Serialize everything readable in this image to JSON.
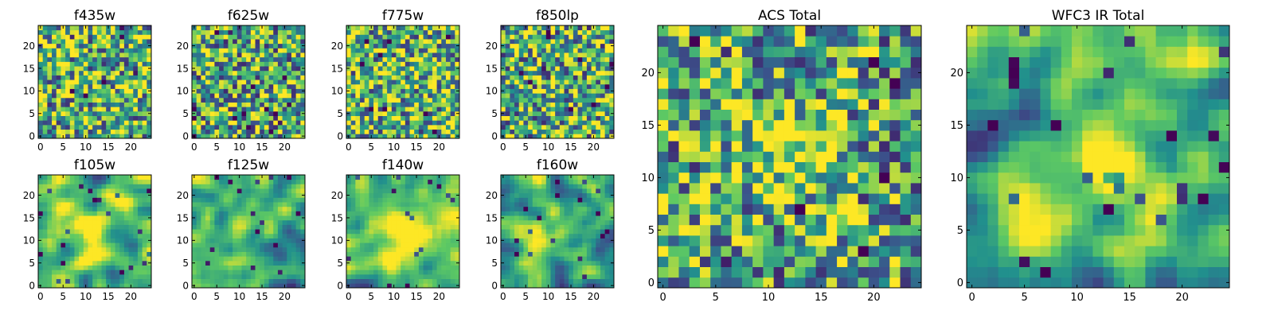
{
  "colormap": {
    "name": "viridis",
    "stops": [
      "#440154",
      "#3b528b",
      "#21908d",
      "#5dc963",
      "#fde725"
    ]
  },
  "chart_data": [
    {
      "type": "heatmap",
      "title": "f435w",
      "xticks": [
        0,
        5,
        10,
        15,
        20
      ],
      "yticks": [
        0,
        5,
        10,
        15,
        20
      ],
      "xlim": [
        -0.5,
        24.5
      ],
      "ylim": [
        -0.5,
        24.5
      ],
      "grid": false,
      "seed": 11,
      "pattern": "noise",
      "mean": 0.65
    },
    {
      "type": "heatmap",
      "title": "f625w",
      "xticks": [
        0,
        5,
        10,
        15,
        20
      ],
      "yticks": [
        0,
        5,
        10,
        15,
        20
      ],
      "xlim": [
        -0.5,
        24.5
      ],
      "ylim": [
        -0.5,
        24.5
      ],
      "grid": false,
      "seed": 23,
      "pattern": "noise",
      "mean": 0.62
    },
    {
      "type": "heatmap",
      "title": "f775w",
      "xticks": [
        0,
        5,
        10,
        15,
        20
      ],
      "yticks": [
        0,
        5,
        10,
        15,
        20
      ],
      "xlim": [
        -0.5,
        24.5
      ],
      "ylim": [
        -0.5,
        24.5
      ],
      "grid": false,
      "seed": 37,
      "pattern": "noise",
      "mean": 0.66
    },
    {
      "type": "heatmap",
      "title": "f850lp",
      "xticks": [
        0,
        5,
        10,
        15,
        20
      ],
      "yticks": [
        0,
        5,
        10,
        15,
        20
      ],
      "xlim": [
        -0.5,
        24.5
      ],
      "ylim": [
        -0.5,
        24.5
      ],
      "grid": false,
      "seed": 41,
      "pattern": "noise",
      "mean": 0.63
    },
    {
      "type": "heatmap",
      "title": "ACS Total",
      "xticks": [
        0,
        5,
        10,
        15,
        20
      ],
      "yticks": [
        0,
        5,
        10,
        15,
        20
      ],
      "xlim": [
        -0.5,
        24.5
      ],
      "ylim": [
        -0.5,
        24.5
      ],
      "grid": false,
      "seed": 53,
      "pattern": "noise-bright-center",
      "mean": 0.62
    },
    {
      "type": "heatmap",
      "title": "WFC3 IR Total",
      "xticks": [
        0,
        5,
        10,
        15,
        20
      ],
      "yticks": [
        0,
        5,
        10,
        15,
        20
      ],
      "xlim": [
        -0.5,
        24.5
      ],
      "ylim": [
        -0.5,
        24.5
      ],
      "grid": false,
      "seed": 67,
      "pattern": "smooth-bright-center",
      "mean": 0.62
    },
    {
      "type": "heatmap",
      "title": "f105w",
      "xticks": [
        0,
        5,
        10,
        15,
        20
      ],
      "yticks": [
        0,
        5,
        10,
        15,
        20
      ],
      "xlim": [
        -0.5,
        24.5
      ],
      "ylim": [
        -0.5,
        24.5
      ],
      "grid": false,
      "seed": 71,
      "pattern": "smooth-bright-center",
      "mean": 0.66
    },
    {
      "type": "heatmap",
      "title": "f125w",
      "xticks": [
        0,
        5,
        10,
        15,
        20
      ],
      "yticks": [
        0,
        5,
        10,
        15,
        20
      ],
      "xlim": [
        -0.5,
        24.5
      ],
      "ylim": [
        -0.5,
        24.5
      ],
      "grid": false,
      "seed": 83,
      "pattern": "smooth-bright-center",
      "mean": 0.6
    },
    {
      "type": "heatmap",
      "title": "f140w",
      "xticks": [
        0,
        5,
        10,
        15,
        20
      ],
      "yticks": [
        0,
        5,
        10,
        15,
        20
      ],
      "xlim": [
        -0.5,
        24.5
      ],
      "ylim": [
        -0.5,
        24.5
      ],
      "grid": false,
      "seed": 97,
      "pattern": "smooth-bright-center",
      "mean": 0.64
    },
    {
      "type": "heatmap",
      "title": "f160w",
      "xticks": [
        0,
        5,
        10,
        15,
        20
      ],
      "yticks": [
        0,
        5,
        10,
        15,
        20
      ],
      "xlim": [
        -0.5,
        24.5
      ],
      "ylim": [
        -0.5,
        24.5
      ],
      "grid": false,
      "seed": 101,
      "pattern": "smooth-bright-center",
      "mean": 0.62
    }
  ]
}
